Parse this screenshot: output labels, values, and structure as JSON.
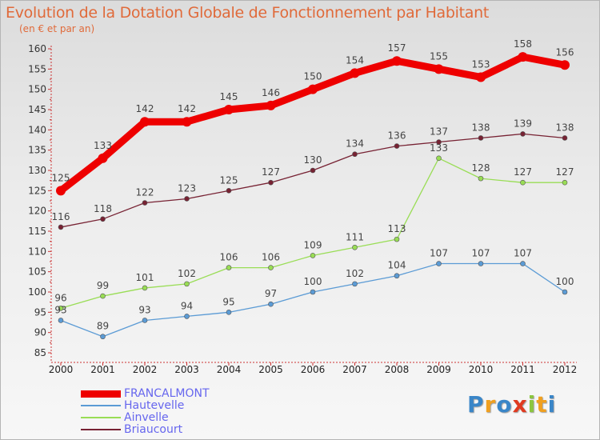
{
  "chart_data": {
    "type": "line",
    "title": "Evolution de la Dotation Globale de Fonctionnement par Habitant",
    "subtitle": "(en € et par an)",
    "x": [
      "2000",
      "2001",
      "2002",
      "2003",
      "2004",
      "2005",
      "2006",
      "2007",
      "2008",
      "2009",
      "2010",
      "2011",
      "2012"
    ],
    "ylim": [
      85,
      160
    ],
    "yticks": [
      85,
      90,
      95,
      100,
      105,
      110,
      115,
      120,
      125,
      130,
      135,
      140,
      145,
      150,
      155,
      160
    ],
    "grid": false,
    "legend_position": "bottom-left",
    "series": [
      {
        "name": "FRANCALMONT",
        "color": "#ee0000",
        "values": [
          125,
          133,
          142,
          142,
          145,
          146,
          150,
          154,
          157,
          155,
          153,
          158,
          156
        ]
      },
      {
        "name": "Hautevelle",
        "color": "#5b9bd5",
        "values": [
          93,
          89,
          93,
          94,
          95,
          97,
          100,
          102,
          104,
          107,
          107,
          107,
          100
        ]
      },
      {
        "name": "Ainvelle",
        "color": "#99dd55",
        "values": [
          96,
          99,
          101,
          102,
          106,
          106,
          109,
          111,
          113,
          133,
          128,
          127,
          127
        ]
      },
      {
        "name": "Briaucourt",
        "color": "#772233",
        "values": [
          116,
          118,
          122,
          123,
          125,
          127,
          130,
          134,
          136,
          137,
          138,
          139,
          138
        ]
      }
    ]
  },
  "logo": {
    "letters": [
      "P",
      "r",
      "o",
      "x",
      "i",
      "t",
      "i"
    ],
    "colors": [
      "#3a86c8",
      "#f0a020",
      "#3a86c8",
      "#e03a20",
      "#8cc63f",
      "#f0a020",
      "#3a86c8"
    ]
  }
}
